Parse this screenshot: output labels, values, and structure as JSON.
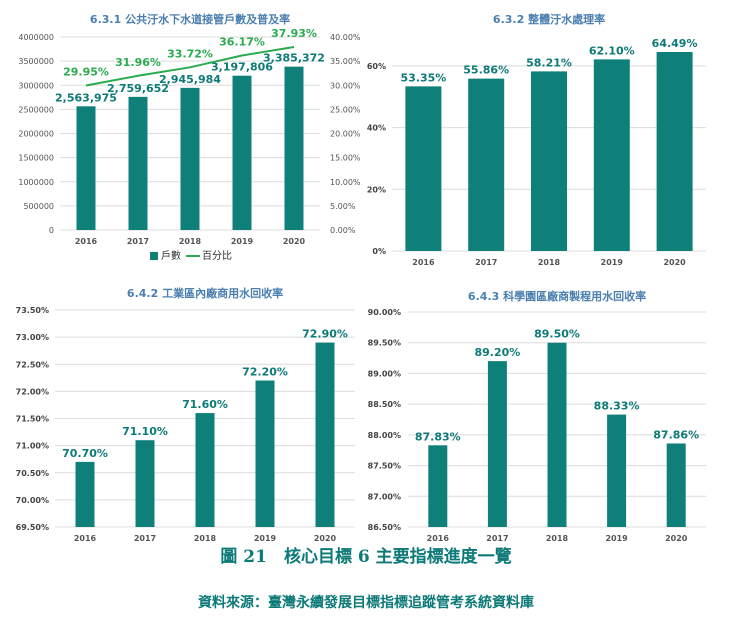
{
  "figure": {
    "caption": "圖 21　核心目標 6 主要指標進度一覽",
    "source": "資料來源：臺灣永續發展目標指標追蹤管考系統資料庫"
  },
  "colors": {
    "bar": "#0f7f7a",
    "line": "#2bab4f",
    "title": "#4b7fb0",
    "caption": "#0d7a78"
  },
  "chart_data": [
    {
      "type": "bar",
      "title": "6.3.1 公共汙水下水道接管戶數及普及率",
      "categories": [
        "2016",
        "2017",
        "2018",
        "2019",
        "2020"
      ],
      "series": [
        {
          "name": "戶數",
          "type": "bar",
          "axis": "left",
          "values": [
            2563975,
            2759652,
            2945984,
            3197806,
            3385372
          ],
          "labels": [
            "2,563,975",
            "2,759,652",
            "2,945,984",
            "3,197,806",
            "3,385,372"
          ]
        },
        {
          "name": "百分比",
          "type": "line",
          "axis": "right",
          "values": [
            29.95,
            31.96,
            33.72,
            36.17,
            37.93
          ],
          "labels": [
            "29.95%",
            "31.96%",
            "33.72%",
            "36.17%",
            "37.93%"
          ]
        }
      ],
      "ylabel_units": "戶數",
      "ylim": [
        0,
        4000000
      ],
      "yticks": [
        "0",
        "500000",
        "1000000",
        "1500000",
        "2000000",
        "2500000",
        "3000000",
        "3500000",
        "4000000"
      ],
      "y2lim": [
        0,
        40
      ],
      "y2ticks": [
        "0.00%",
        "5.00%",
        "10.00%",
        "15.00%",
        "20.00%",
        "25.00%",
        "30.00%",
        "35.00%",
        "40.00%"
      ],
      "legend": "bottom",
      "grid": true
    },
    {
      "type": "bar",
      "title": "6.3.2 整體汙水處理率",
      "categories": [
        "2016",
        "2017",
        "2018",
        "2019",
        "2020"
      ],
      "values": [
        53.35,
        55.86,
        58.21,
        62.1,
        64.49
      ],
      "labels": [
        "53.35%",
        "55.86%",
        "58.21%",
        "62.10%",
        "64.49%"
      ],
      "ylim": [
        0,
        70
      ],
      "yticks": [
        "0%",
        "20%",
        "40%",
        "60%"
      ],
      "grid": true
    },
    {
      "type": "bar",
      "title": "6.4.2 工業區內廠商用水回收率",
      "categories": [
        "2016",
        "2017",
        "2018",
        "2019",
        "2020"
      ],
      "values": [
        70.7,
        71.1,
        71.6,
        72.2,
        72.9
      ],
      "labels": [
        "70.70%",
        "71.10%",
        "71.60%",
        "72.20%",
        "72.90%"
      ],
      "ylim": [
        69.5,
        73.5
      ],
      "yticks": [
        "69.50%",
        "70.00%",
        "70.50%",
        "71.00%",
        "71.50%",
        "72.00%",
        "72.50%",
        "73.00%",
        "73.50%"
      ],
      "grid": true
    },
    {
      "type": "bar",
      "title": "6.4.3 科學園區廠商製程用水回收率",
      "categories": [
        "2016",
        "2017",
        "2018",
        "2019",
        "2020"
      ],
      "values": [
        87.83,
        89.2,
        89.5,
        88.33,
        87.86
      ],
      "labels": [
        "87.83%",
        "89.20%",
        "89.50%",
        "88.33%",
        "87.86%"
      ],
      "ylim": [
        86.5,
        90.0
      ],
      "yticks": [
        "86.50%",
        "87.00%",
        "87.50%",
        "88.00%",
        "88.50%",
        "89.00%",
        "89.50%",
        "90.00%"
      ],
      "grid": true
    }
  ]
}
